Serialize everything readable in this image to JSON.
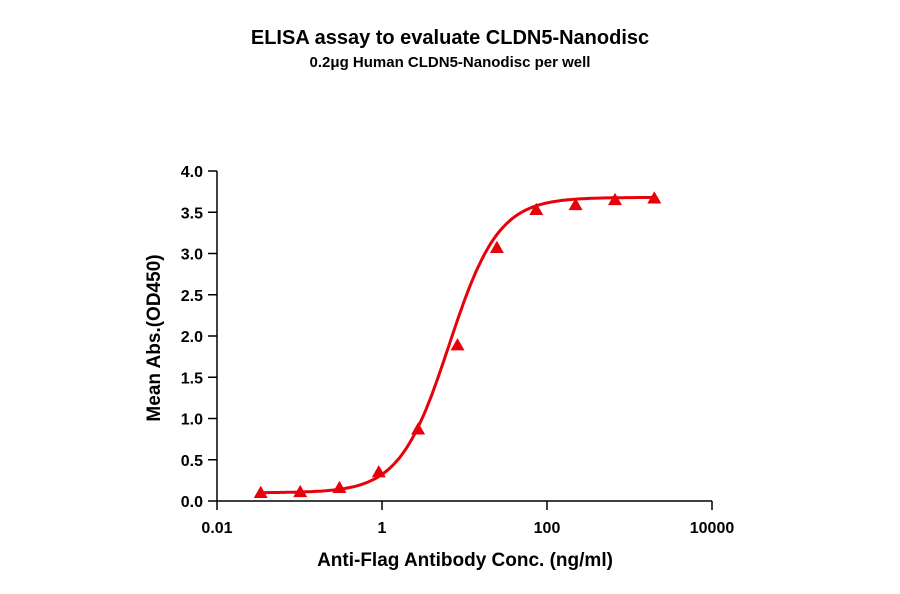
{
  "chart_data": {
    "type": "line",
    "title": "ELISA assay to evaluate CLDN5-Nanodisc",
    "subtitle": "0.2μg Human CLDN5-Nanodisc per well",
    "xlabel": "Anti-Flag Antibody Conc. (ng/ml)",
    "ylabel": "Mean Abs.(OD450)",
    "xscale": "log",
    "xlim": [
      0.01,
      10000
    ],
    "ylim": [
      0.0,
      4.0
    ],
    "x_ticks": [
      "0.01",
      "1",
      "100",
      "10000"
    ],
    "y_ticks": [
      "0.0",
      "0.5",
      "1.0",
      "1.5",
      "2.0",
      "2.5",
      "3.0",
      "3.5",
      "4.0"
    ],
    "grid": false,
    "legend": null,
    "series": [
      {
        "name": "Human CLDN5-Nanodisc",
        "color": "#e8000b",
        "marker": "triangle",
        "fit": "4PL sigmoid",
        "x": [
          0.0339,
          0.102,
          0.305,
          0.914,
          2.74,
          8.23,
          24.7,
          74.1,
          222.2,
          666.7,
          2000
        ],
        "values": [
          0.1,
          0.11,
          0.16,
          0.35,
          0.87,
          1.89,
          3.07,
          3.53,
          3.59,
          3.65,
          3.67
        ]
      }
    ]
  }
}
